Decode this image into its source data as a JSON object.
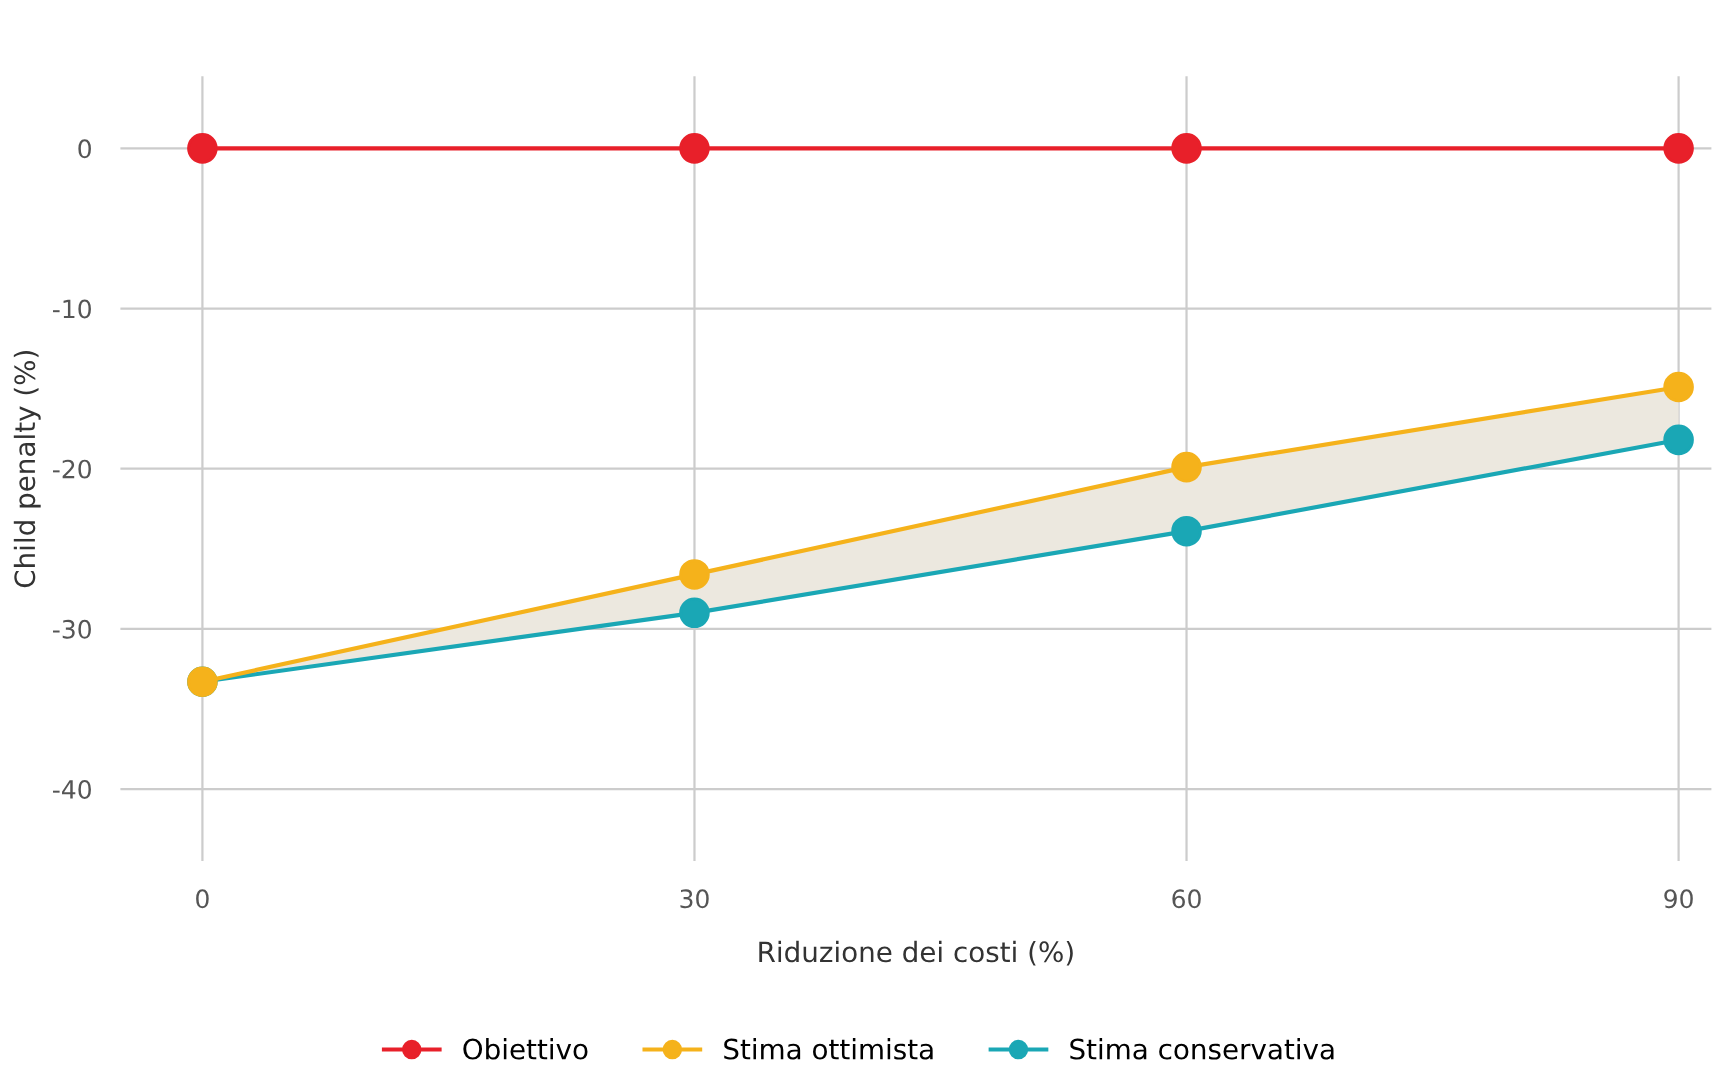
{
  "chart_data": {
    "type": "line",
    "xlabel": "Riduzione dei costi (%)",
    "ylabel": "Child penalty (%)",
    "x": [
      0,
      30,
      60,
      90
    ],
    "series": [
      {
        "name": "Obiettivo",
        "color": "#e8202a",
        "values": [
          0,
          0,
          0,
          0
        ]
      },
      {
        "name": "Stima ottimista",
        "color": "#f5b21b",
        "values": [
          -33.3,
          -26.6,
          -19.9,
          -14.9
        ],
        "lower": [
          -33.3,
          -29.0,
          -23.9,
          -18.2
        ],
        "upper": [
          -33.3,
          -26.6,
          -19.9,
          -14.9
        ]
      },
      {
        "name": "Stima conservativa",
        "color": "#1aa7b5",
        "values": [
          -33.3,
          -29.0,
          -23.9,
          -18.2
        ]
      }
    ],
    "xlim": [
      -5,
      92
    ],
    "ylim": [
      -44.5,
      4.5
    ],
    "xticks": [
      0,
      30,
      60,
      90
    ],
    "yticks": [
      0,
      -10,
      -20,
      -30,
      -40
    ],
    "grid": true,
    "legend": "bottom",
    "marker": "circle",
    "line_style": "solid"
  }
}
